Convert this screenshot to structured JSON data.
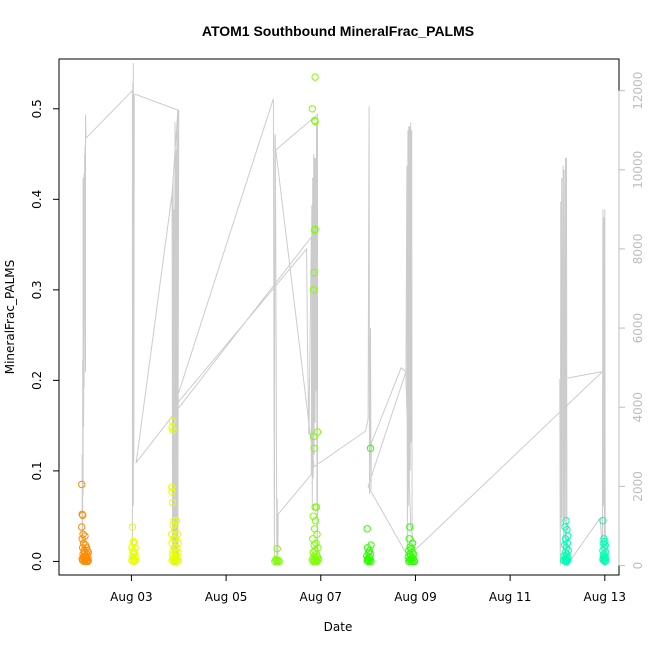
{
  "chart_data": {
    "type": "scatter",
    "title": "ATOM1 Southbound MineralFrac_PALMS",
    "xlabel": "Date",
    "ylabel": "MineralFrac_PALMS",
    "xlim": [
      1.47,
      13.3
    ],
    "ylim": [
      -0.015,
      0.555
    ],
    "y2lim": [
      -240,
      12800
    ],
    "x_ticks": [
      {
        "value": 3,
        "label": "Aug 03"
      },
      {
        "value": 5,
        "label": "Aug 05"
      },
      {
        "value": 7,
        "label": "Aug 07"
      },
      {
        "value": 9,
        "label": "Aug 09"
      },
      {
        "value": 11,
        "label": "Aug 11"
      },
      {
        "value": 13,
        "label": "Aug 13"
      }
    ],
    "y_ticks": [
      {
        "value": 0.0,
        "label": "0.0"
      },
      {
        "value": 0.1,
        "label": "0.1"
      },
      {
        "value": 0.2,
        "label": "0.2"
      },
      {
        "value": 0.3,
        "label": "0.3"
      },
      {
        "value": 0.4,
        "label": "0.4"
      },
      {
        "value": 0.5,
        "label": "0.5"
      }
    ],
    "y2_ticks": [
      {
        "value": 0,
        "label": "0"
      },
      {
        "value": 2000,
        "label": "2000"
      },
      {
        "value": 4000,
        "label": "4000"
      },
      {
        "value": 6000,
        "label": "6000"
      },
      {
        "value": 8000,
        "label": "8000"
      },
      {
        "value": 10000,
        "label": "10000"
      },
      {
        "value": 12000,
        "label": "12000"
      }
    ],
    "grid": false,
    "legend": "none",
    "colors": {
      "axis": "#000000",
      "secondary_axis": "#bdbdbd",
      "altitude_line": "#cccccc"
    },
    "series": [
      {
        "color": "#ff8c00",
        "points": [
          [
            1.95,
            0.085
          ],
          [
            1.96,
            0.052
          ],
          [
            1.97,
            0.051
          ],
          [
            1.95,
            0.038
          ],
          [
            1.98,
            0.03
          ],
          [
            1.96,
            0.025
          ],
          [
            2.02,
            0.028
          ],
          [
            1.99,
            0.02
          ],
          [
            2.03,
            0.018
          ],
          [
            1.97,
            0.015
          ],
          [
            2.05,
            0.015
          ],
          [
            2.0,
            0.012
          ],
          [
            2.07,
            0.012
          ],
          [
            2.01,
            0.01
          ],
          [
            1.98,
            0.008
          ],
          [
            2.06,
            0.008
          ],
          [
            2.09,
            0.01
          ],
          [
            2.02,
            0.005
          ],
          [
            1.99,
            0.005
          ],
          [
            2.04,
            0.005
          ],
          [
            2.08,
            0.004
          ],
          [
            1.96,
            0.003
          ],
          [
            2.0,
            0.002
          ],
          [
            2.03,
            0.002
          ],
          [
            2.06,
            0.001
          ],
          [
            2.09,
            0.001
          ],
          [
            1.97,
            0.001
          ],
          [
            2.05,
            0.0
          ],
          [
            2.01,
            0.0
          ],
          [
            2.08,
            0.0
          ]
        ]
      },
      {
        "color": "#e6ff00",
        "points": [
          [
            3.02,
            0.038
          ],
          [
            3.04,
            0.022
          ],
          [
            3.06,
            0.02
          ],
          [
            3.01,
            0.015
          ],
          [
            3.08,
            0.015
          ],
          [
            3.03,
            0.012
          ],
          [
            3.07,
            0.01
          ],
          [
            3.05,
            0.008
          ],
          [
            3.02,
            0.005
          ],
          [
            3.09,
            0.005
          ],
          [
            3.04,
            0.003
          ],
          [
            3.06,
            0.002
          ],
          [
            3.01,
            0.001
          ],
          [
            3.08,
            0.001
          ],
          [
            3.05,
            0.0
          ],
          [
            3.87,
            0.155
          ],
          [
            3.86,
            0.148
          ],
          [
            3.88,
            0.145
          ],
          [
            3.85,
            0.082
          ],
          [
            3.86,
            0.077
          ],
          [
            3.87,
            0.065
          ],
          [
            3.9,
            0.045
          ],
          [
            3.95,
            0.045
          ],
          [
            3.88,
            0.04
          ],
          [
            3.92,
            0.035
          ],
          [
            3.85,
            0.03
          ],
          [
            3.97,
            0.03
          ],
          [
            3.89,
            0.025
          ],
          [
            3.93,
            0.025
          ],
          [
            3.86,
            0.02
          ],
          [
            3.99,
            0.02
          ],
          [
            3.91,
            0.015
          ],
          [
            3.96,
            0.015
          ],
          [
            3.88,
            0.012
          ],
          [
            3.94,
            0.01
          ],
          [
            3.98,
            0.01
          ],
          [
            3.87,
            0.008
          ],
          [
            3.92,
            0.006
          ],
          [
            3.95,
            0.005
          ],
          [
            3.9,
            0.004
          ],
          [
            3.97,
            0.003
          ],
          [
            3.89,
            0.002
          ],
          [
            3.93,
            0.002
          ],
          [
            3.86,
            0.001
          ],
          [
            3.99,
            0.001
          ],
          [
            3.91,
            0.0
          ],
          [
            3.96,
            0.0
          ]
        ]
      },
      {
        "color": "#7cff00",
        "points": [
          [
            6.08,
            0.014
          ],
          [
            6.05,
            0.002
          ],
          [
            6.07,
            0.001
          ],
          [
            6.1,
            0.001
          ],
          [
            6.03,
            0.0
          ],
          [
            6.12,
            0.0
          ],
          [
            6.88,
            0.535
          ],
          [
            6.82,
            0.5
          ],
          [
            6.87,
            0.487
          ],
          [
            6.88,
            0.486
          ],
          [
            6.88,
            0.367
          ],
          [
            6.87,
            0.366
          ],
          [
            6.86,
            0.319
          ],
          [
            6.85,
            0.3
          ],
          [
            6.93,
            0.143
          ],
          [
            6.85,
            0.138
          ],
          [
            6.86,
            0.125
          ],
          [
            6.88,
            0.06
          ],
          [
            6.91,
            0.06
          ],
          [
            6.84,
            0.05
          ],
          [
            6.89,
            0.045
          ],
          [
            6.87,
            0.036
          ],
          [
            6.92,
            0.03
          ],
          [
            6.83,
            0.025
          ],
          [
            6.9,
            0.02
          ],
          [
            6.86,
            0.018
          ],
          [
            6.94,
            0.015
          ],
          [
            6.88,
            0.012
          ],
          [
            6.84,
            0.01
          ],
          [
            6.91,
            0.008
          ],
          [
            6.86,
            0.005
          ],
          [
            6.93,
            0.005
          ],
          [
            6.89,
            0.003
          ],
          [
            6.82,
            0.002
          ],
          [
            6.95,
            0.002
          ],
          [
            6.87,
            0.001
          ],
          [
            6.9,
            0.001
          ],
          [
            6.84,
            0.0
          ],
          [
            6.92,
            0.0
          ]
        ]
      },
      {
        "color": "#2eff00",
        "points": [
          [
            8.05,
            0.125
          ],
          [
            7.98,
            0.036
          ],
          [
            8.06,
            0.018
          ],
          [
            7.99,
            0.015
          ],
          [
            8.03,
            0.012
          ],
          [
            8.01,
            0.01
          ],
          [
            8.05,
            0.008
          ],
          [
            7.97,
            0.006
          ],
          [
            8.02,
            0.005
          ],
          [
            8.04,
            0.004
          ],
          [
            7.99,
            0.003
          ],
          [
            8.01,
            0.002
          ],
          [
            8.03,
            0.001
          ],
          [
            7.98,
            0.001
          ],
          [
            8.06,
            0.0
          ],
          [
            8.0,
            0.0
          ],
          [
            8.88,
            0.038
          ],
          [
            8.87,
            0.025
          ],
          [
            8.94,
            0.02
          ],
          [
            8.89,
            0.016
          ],
          [
            8.91,
            0.014
          ],
          [
            8.86,
            0.012
          ],
          [
            8.93,
            0.01
          ],
          [
            8.88,
            0.008
          ],
          [
            8.96,
            0.008
          ],
          [
            8.9,
            0.006
          ],
          [
            8.85,
            0.005
          ],
          [
            8.92,
            0.004
          ],
          [
            8.95,
            0.003
          ],
          [
            8.87,
            0.002
          ],
          [
            8.91,
            0.002
          ],
          [
            8.97,
            0.001
          ],
          [
            8.89,
            0.001
          ],
          [
            8.93,
            0.0
          ],
          [
            8.86,
            0.0
          ],
          [
            8.98,
            0.0
          ]
        ]
      },
      {
        "color": "#00ffb2",
        "points": [
          [
            12.18,
            0.045
          ],
          [
            12.16,
            0.038
          ],
          [
            12.2,
            0.035
          ],
          [
            12.22,
            0.028
          ],
          [
            12.17,
            0.025
          ],
          [
            12.21,
            0.02
          ],
          [
            12.15,
            0.018
          ],
          [
            12.19,
            0.015
          ],
          [
            12.23,
            0.012
          ],
          [
            12.17,
            0.01
          ],
          [
            12.2,
            0.008
          ],
          [
            12.14,
            0.006
          ],
          [
            12.18,
            0.005
          ],
          [
            12.22,
            0.004
          ],
          [
            12.16,
            0.003
          ],
          [
            12.19,
            0.002
          ],
          [
            12.13,
            0.001
          ],
          [
            12.21,
            0.001
          ],
          [
            12.17,
            0.0
          ],
          [
            12.2,
            0.0
          ],
          [
            12.96,
            0.045
          ],
          [
            12.98,
            0.025
          ],
          [
            13.0,
            0.022
          ],
          [
            12.97,
            0.02
          ],
          [
            13.01,
            0.018
          ],
          [
            12.99,
            0.015
          ],
          [
            12.96,
            0.012
          ],
          [
            13.02,
            0.01
          ],
          [
            12.98,
            0.008
          ],
          [
            13.0,
            0.006
          ],
          [
            12.97,
            0.005
          ],
          [
            13.01,
            0.004
          ],
          [
            12.99,
            0.003
          ],
          [
            12.96,
            0.002
          ],
          [
            13.02,
            0.001
          ],
          [
            12.98,
            0.001
          ],
          [
            13.0,
            0.0
          ]
        ]
      }
    ],
    "altitude_line": [
      [
        1.96,
        0
      ],
      [
        1.96,
        2800
      ],
      [
        1.97,
        600
      ],
      [
        1.97,
        5200
      ],
      [
        1.98,
        1800
      ],
      [
        1.98,
        9800
      ],
      [
        1.99,
        3500
      ],
      [
        2.0,
        9900
      ],
      [
        2.0,
        4500
      ],
      [
        2.01,
        10400
      ],
      [
        2.01,
        6200
      ],
      [
        2.02,
        10600
      ],
      [
        2.03,
        4900
      ],
      [
        2.03,
        11400
      ],
      [
        2.04,
        10800
      ],
      [
        3.02,
        12000
      ],
      [
        3.02,
        500
      ],
      [
        3.03,
        12200
      ],
      [
        3.04,
        1500
      ],
      [
        3.04,
        12700
      ],
      [
        3.05,
        2600
      ],
      [
        3.06,
        11900
      ],
      [
        3.1,
        11900
      ],
      [
        4.0,
        11500
      ],
      [
        3.98,
        0
      ],
      [
        3.98,
        11500
      ],
      [
        3.86,
        9400
      ],
      [
        3.87,
        0
      ],
      [
        3.87,
        9600
      ],
      [
        3.88,
        1500
      ],
      [
        3.88,
        9800
      ],
      [
        3.89,
        0
      ],
      [
        3.9,
        9000
      ],
      [
        3.91,
        0
      ],
      [
        3.92,
        11200
      ],
      [
        3.93,
        0
      ],
      [
        3.94,
        10500
      ],
      [
        3.95,
        0
      ],
      [
        3.96,
        11000
      ],
      [
        3.97,
        0
      ],
      [
        3.86,
        9400
      ],
      [
        3.1,
        2600
      ],
      [
        6.8,
        8300
      ],
      [
        6.75,
        3300
      ],
      [
        6.72,
        5500
      ],
      [
        6.7,
        8000
      ],
      [
        3.9,
        4000
      ],
      [
        6.0,
        11800
      ],
      [
        6.02,
        0
      ],
      [
        6.03,
        10800
      ],
      [
        6.04,
        10900
      ],
      [
        6.06,
        4600
      ],
      [
        6.07,
        0
      ],
      [
        6.08,
        1700
      ],
      [
        6.09,
        0
      ],
      [
        6.1,
        1300
      ],
      [
        6.8,
        2300
      ],
      [
        6.81,
        9100
      ],
      [
        6.82,
        1400
      ],
      [
        6.83,
        9800
      ],
      [
        6.84,
        2200
      ],
      [
        6.85,
        10400
      ],
      [
        6.86,
        2800
      ],
      [
        6.87,
        10300
      ],
      [
        6.88,
        3600
      ],
      [
        6.89,
        10300
      ],
      [
        6.9,
        4400
      ],
      [
        6.91,
        11200
      ],
      [
        6.92,
        1300
      ],
      [
        6.93,
        200
      ],
      [
        6.93,
        11400
      ],
      [
        6.05,
        10500
      ],
      [
        6.86,
        2500
      ],
      [
        7.95,
        3400
      ],
      [
        8.0,
        3700
      ],
      [
        8.02,
        11600
      ],
      [
        8.03,
        1800
      ],
      [
        8.04,
        3600
      ],
      [
        8.05,
        6000
      ],
      [
        8.06,
        1900
      ],
      [
        8.07,
        3100
      ],
      [
        8.7,
        5000
      ],
      [
        8.8,
        4900
      ],
      [
        8.82,
        10100
      ],
      [
        8.83,
        300
      ],
      [
        8.84,
        11000
      ],
      [
        8.85,
        1500
      ],
      [
        8.86,
        11100
      ],
      [
        8.87,
        2000
      ],
      [
        8.88,
        11100
      ],
      [
        8.89,
        2400
      ],
      [
        8.9,
        11200
      ],
      [
        8.91,
        3100
      ],
      [
        8.92,
        11000
      ],
      [
        8.93,
        500
      ],
      [
        8.95,
        0
      ],
      [
        8.0,
        2000
      ],
      [
        8.8,
        4900
      ],
      [
        8.8,
        4600
      ],
      [
        8.9,
        1000
      ],
      [
        9.0,
        400
      ],
      [
        12.95,
        4900
      ],
      [
        12.05,
        4700
      ],
      [
        12.06,
        0
      ],
      [
        12.07,
        9200
      ],
      [
        12.08,
        1000
      ],
      [
        12.09,
        9800
      ],
      [
        12.1,
        1200
      ],
      [
        12.12,
        10100
      ],
      [
        12.13,
        500
      ],
      [
        12.14,
        10000
      ],
      [
        12.15,
        1100
      ],
      [
        12.17,
        10300
      ],
      [
        12.18,
        0
      ],
      [
        12.19,
        10300
      ],
      [
        12.2,
        0
      ],
      [
        12.9,
        1200
      ],
      [
        12.95,
        400
      ],
      [
        12.96,
        9000
      ],
      [
        12.97,
        1500
      ],
      [
        12.98,
        8800
      ],
      [
        12.99,
        0
      ],
      [
        13.0,
        9000
      ],
      [
        13.01,
        0
      ]
    ]
  }
}
